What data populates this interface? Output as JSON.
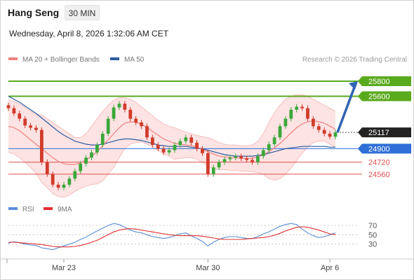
{
  "header": {
    "title": "Hang Seng",
    "timeframe": "30 MIN",
    "timestamp": "Wednesday, April 8, 2026 1:32:06 AM CET",
    "credit": "Research © 2026 Trading Central"
  },
  "legend": {
    "ma20_label": "MA 20 + Bollinger Bands",
    "ma20_color": "#f08080",
    "ma50_label": "MA 50",
    "ma50_color": "#2c5a9e",
    "rsi_label": "RSI",
    "rsi_color": "#5b8fd6",
    "rsi_ma_label": "9MA",
    "rsi_ma_color": "#e03030"
  },
  "colors": {
    "up_candle": "#39a83a",
    "down_candle": "#d13a2a",
    "target_level": "#5aaa1e",
    "pivot_level": "#2f6fd6",
    "support_level": "#e05050",
    "current_price": "#222222",
    "bollinger_fill": "#fde0e0",
    "arrow": "#2f63b3"
  },
  "chart_data": [
    {
      "type": "candlestick",
      "title": "Hang Seng",
      "x_tick_labels": [
        "Mar 23",
        "Mar 30",
        "Apr 6"
      ],
      "ylim": [
        24250,
        25950
      ],
      "levels": [
        {
          "value": 25800,
          "label": "25800",
          "kind": "target"
        },
        {
          "value": 25600,
          "label": "25600",
          "kind": "target"
        },
        {
          "value": 25117,
          "label": "25117",
          "kind": "current"
        },
        {
          "value": 24900,
          "label": "24900",
          "kind": "pivot"
        },
        {
          "value": 24720,
          "label": "24720",
          "kind": "support"
        },
        {
          "value": 24560,
          "label": "24560",
          "kind": "support"
        }
      ],
      "projection": {
        "from": 25117,
        "to": 25800
      },
      "close_series": [
        25440,
        25370,
        25300,
        25210,
        25180,
        25150,
        24720,
        24560,
        24420,
        24380,
        24420,
        24500,
        24600,
        24700,
        24780,
        24850,
        24950,
        25100,
        25300,
        25450,
        25500,
        25420,
        25300,
        25250,
        25200,
        25050,
        24950,
        24900,
        24850,
        24880,
        24950,
        25000,
        25050,
        24980,
        24900,
        24840,
        24560,
        24650,
        24720,
        24760,
        24780,
        24800,
        24770,
        24750,
        24720,
        24800,
        24880,
        24960,
        25050,
        25200,
        25300,
        25420,
        25460,
        25440,
        25300,
        25200,
        25150,
        25100,
        25060,
        25117
      ],
      "ma20": [
        25200,
        25180,
        25140,
        25080,
        25020,
        24960,
        24900,
        24840,
        24780,
        24730,
        24700,
        24690,
        24690,
        24710,
        24750,
        24800,
        24860,
        24940,
        25020,
        25100,
        25180,
        25240,
        25260,
        25250,
        25230,
        25180,
        25130,
        25080,
        25030,
        25000,
        24970,
        24960,
        24950,
        24940,
        24920,
        24890,
        24860,
        24830,
        24800,
        24790,
        24780,
        24780,
        24770,
        24770,
        24770,
        24790,
        24820,
        24860,
        24910,
        24970,
        25040,
        25110,
        25180,
        25230,
        25260,
        25270,
        25260,
        25240,
        25200,
        25160
      ],
      "ma50": [
        25600,
        25560,
        25520,
        25470,
        25420,
        25370,
        25310,
        25250,
        25190,
        25130,
        25080,
        25040,
        25000,
        24980,
        24960,
        24950,
        24950,
        24960,
        24980,
        25000,
        25020,
        25030,
        25030,
        25020,
        25010,
        24990,
        24970,
        24950,
        24940,
        24930,
        24930,
        24930,
        24930,
        24920,
        24910,
        24900,
        24880,
        24860,
        24840,
        24820,
        24810,
        24800,
        24800,
        24800,
        24800,
        24810,
        24820,
        24840,
        24860,
        24880,
        24900,
        24910,
        24920,
        24930,
        24930,
        24930,
        24930,
        24930,
        24920,
        24920
      ],
      "bb_upper": [
        25550,
        25530,
        25500,
        25450,
        25400,
        25350,
        25350,
        25300,
        25250,
        25200,
        25150,
        25100,
        25050,
        25050,
        25100,
        25200,
        25300,
        25400,
        25480,
        25550,
        25580,
        25580,
        25560,
        25520,
        25460,
        25400,
        25340,
        25280,
        25230,
        25200,
        25180,
        25150,
        25120,
        25100,
        25080,
        25060,
        25050,
        25020,
        24980,
        24960,
        24950,
        24950,
        24940,
        24940,
        24950,
        25000,
        25100,
        25250,
        25380,
        25480,
        25560,
        25600,
        25620,
        25620,
        25600,
        25560,
        25520,
        25480,
        25440,
        25400
      ],
      "bb_lower": [
        24850,
        24830,
        24780,
        24720,
        24650,
        24570,
        24450,
        24380,
        24300,
        24260,
        24250,
        24280,
        24330,
        24370,
        24400,
        24420,
        24430,
        24470,
        24560,
        24650,
        24780,
        24900,
        24960,
        24980,
        24990,
        24960,
        24920,
        24880,
        24830,
        24800,
        24760,
        24770,
        24780,
        24780,
        24760,
        24720,
        24660,
        24640,
        24620,
        24620,
        24610,
        24610,
        24600,
        24600,
        24590,
        24580,
        24560,
        24500,
        24480,
        24500,
        24560,
        24640,
        24740,
        24840,
        24920,
        24980,
        25000,
        25000,
        24960,
        24920
      ]
    },
    {
      "type": "line",
      "title": "RSI",
      "ylim": [
        10,
        85
      ],
      "y_ticks": [
        70,
        50,
        30
      ],
      "series": [
        {
          "name": "RSI",
          "values": [
            32,
            35,
            33,
            30,
            28,
            27,
            22,
            20,
            18,
            22,
            26,
            30,
            34,
            40,
            45,
            52,
            58,
            64,
            70,
            74,
            72,
            66,
            60,
            56,
            54,
            50,
            46,
            44,
            42,
            44,
            48,
            52,
            54,
            48,
            42,
            36,
            26,
            34,
            40,
            44,
            46,
            46,
            44,
            42,
            42,
            46,
            52,
            56,
            62,
            68,
            72,
            74,
            72,
            62,
            54,
            48,
            44,
            46,
            50,
            54
          ]
        },
        {
          "name": "9MA",
          "values": [
            34,
            34,
            33,
            32,
            31,
            30,
            29,
            27,
            25,
            24,
            24,
            24,
            25,
            27,
            30,
            34,
            38,
            44,
            50,
            56,
            60,
            62,
            63,
            62,
            60,
            58,
            56,
            54,
            52,
            50,
            49,
            48,
            48,
            48,
            48,
            47,
            45,
            43,
            41,
            40,
            40,
            40,
            40,
            41,
            42,
            43,
            44,
            46,
            49,
            53,
            58,
            62,
            66,
            67,
            66,
            63,
            60,
            56,
            52,
            50
          ]
        }
      ]
    }
  ]
}
